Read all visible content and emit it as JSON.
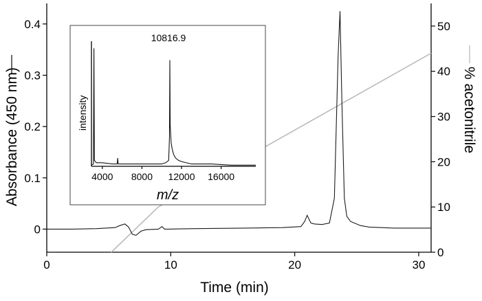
{
  "chart_data": [
    {
      "type": "line",
      "role": "main",
      "xlabel": "Time (min)",
      "ylabel_left": "Absorbance (450 nm)",
      "ylabel_right": "% acetonitrile",
      "xlim": [
        0,
        31
      ],
      "ylim_left": [
        -0.045,
        0.44
      ],
      "ylim_right": [
        0,
        55
      ],
      "xticks": [
        "0",
        "10",
        "20",
        "30"
      ],
      "yticks_left": [
        "0",
        "0.1",
        "0.2",
        "0.3",
        "0.4"
      ],
      "yticks_right": [
        "0",
        "10",
        "20",
        "30",
        "40",
        "50"
      ],
      "colors": {
        "absorbance": "#1a1a1a",
        "acetonitrile": "#bbbbbb"
      },
      "series": [
        {
          "name": "Absorbance (450 nm)",
          "axis": "left",
          "x": [
            0,
            2,
            4,
            5.5,
            5.9,
            6.3,
            6.6,
            6.9,
            7.2,
            7.6,
            8.0,
            9.0,
            9.3,
            9.5,
            9.8,
            12,
            16,
            19,
            20.5,
            20.8,
            21.0,
            21.3,
            21.6,
            22.2,
            22.8,
            23.2,
            23.5,
            23.65,
            23.8,
            24.0,
            24.2,
            24.5,
            24.8,
            25.3,
            26,
            27,
            28,
            29,
            30,
            31
          ],
          "y": [
            0.0,
            0.0,
            0.001,
            0.003,
            0.007,
            0.01,
            0.004,
            -0.01,
            -0.012,
            -0.004,
            -0.001,
            0.0,
            0.005,
            0.0,
            0.0,
            0.001,
            0.002,
            0.003,
            0.005,
            0.015,
            0.027,
            0.012,
            0.01,
            0.009,
            0.012,
            0.06,
            0.34,
            0.425,
            0.25,
            0.06,
            0.025,
            0.015,
            0.012,
            0.007,
            0.004,
            0.003,
            0.002,
            0.002,
            0.002,
            0.002
          ]
        },
        {
          "name": "% acetonitrile",
          "axis": "right",
          "x": [
            5.2,
            9.0,
            31.0
          ],
          "y": [
            0,
            10,
            44
          ]
        }
      ]
    },
    {
      "type": "line",
      "role": "inset",
      "xlabel": "m/z",
      "ylabel": "intensity",
      "xlim": [
        2900,
        19500
      ],
      "ylim": [
        0,
        1.06
      ],
      "xticks": [
        "4000",
        "8000",
        "12000",
        "16000"
      ],
      "annotation": "10816.9",
      "series": [
        {
          "x": [
            2900,
            3100,
            3150,
            3200,
            3400,
            4000,
            5000,
            5500,
            5550,
            5600,
            6500,
            7000,
            9000,
            10000,
            10400,
            10700,
            10780,
            10817,
            10850,
            10950,
            11050,
            11200,
            11400,
            11700,
            12000,
            13000,
            15000,
            17000,
            19000,
            19500
          ],
          "y": [
            0.01,
            0.02,
            1.0,
            0.05,
            0.03,
            0.03,
            0.02,
            0.02,
            0.07,
            0.02,
            0.02,
            0.02,
            0.02,
            0.02,
            0.03,
            0.05,
            0.25,
            0.9,
            0.35,
            0.2,
            0.15,
            0.1,
            0.07,
            0.05,
            0.04,
            0.02,
            0.02,
            0.01,
            0.01,
            0.01
          ]
        }
      ]
    }
  ]
}
